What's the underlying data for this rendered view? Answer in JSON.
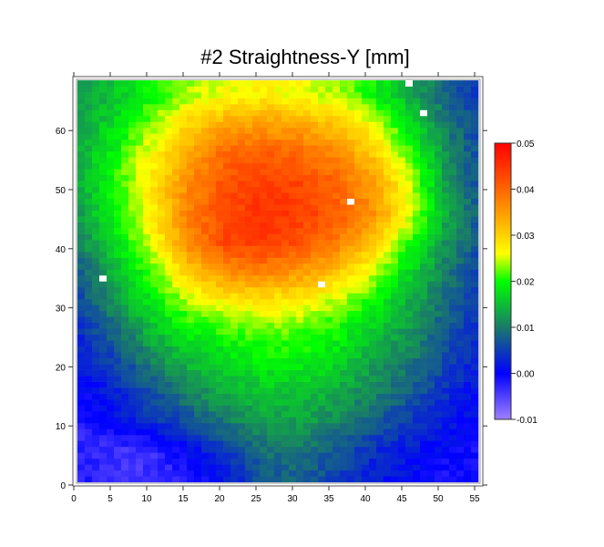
{
  "chart_data": {
    "type": "heatmap",
    "title": "#2 Straightness-Y [mm]",
    "xlabel": "",
    "ylabel": "",
    "xlim": [
      0,
      56
    ],
    "ylim": [
      0,
      69
    ],
    "x_ticks": [
      "0",
      "5",
      "10",
      "15",
      "20",
      "25",
      "30",
      "35",
      "40",
      "45",
      "50",
      "55"
    ],
    "y_ticks": [
      "0",
      "10",
      "20",
      "30",
      "40",
      "50",
      "60"
    ],
    "colorbar": {
      "range": [
        -0.01,
        0.05
      ],
      "ticks": [
        "0.05",
        "0.04",
        "0.03",
        "0.02",
        "0.01",
        "0.00",
        "-0.01"
      ],
      "stops": [
        {
          "v": -0.01,
          "color": "#a080ff"
        },
        {
          "v": 0.0,
          "color": "#0000ff"
        },
        {
          "v": 0.01,
          "color": "#1a7a6a"
        },
        {
          "v": 0.02,
          "color": "#00ff00"
        },
        {
          "v": 0.026,
          "color": "#ffff00"
        },
        {
          "v": 0.033,
          "color": "#ffb000"
        },
        {
          "v": 0.042,
          "color": "#ff5000"
        },
        {
          "v": 0.05,
          "color": "#ff0000"
        }
      ]
    },
    "grid_x": [
      1,
      6,
      11,
      16,
      21,
      26,
      31,
      36,
      41,
      46,
      51,
      56
    ],
    "grid_y": [
      66,
      61,
      56,
      51,
      46,
      41,
      36,
      31,
      26,
      21,
      16,
      11,
      6,
      1
    ],
    "values": [
      [
        0.012,
        0.016,
        0.02,
        0.024,
        0.026,
        0.027,
        0.026,
        0.024,
        0.02,
        0.014,
        0.008,
        0.004
      ],
      [
        0.013,
        0.018,
        0.024,
        0.03,
        0.034,
        0.035,
        0.034,
        0.031,
        0.026,
        0.018,
        0.01,
        0.005
      ],
      [
        0.014,
        0.02,
        0.027,
        0.034,
        0.04,
        0.041,
        0.04,
        0.037,
        0.031,
        0.022,
        0.012,
        0.006
      ],
      [
        0.014,
        0.021,
        0.028,
        0.037,
        0.042,
        0.044,
        0.043,
        0.04,
        0.035,
        0.025,
        0.013,
        0.006
      ],
      [
        0.013,
        0.02,
        0.028,
        0.038,
        0.043,
        0.045,
        0.044,
        0.041,
        0.036,
        0.026,
        0.014,
        0.007
      ],
      [
        0.011,
        0.018,
        0.026,
        0.037,
        0.043,
        0.044,
        0.042,
        0.038,
        0.031,
        0.021,
        0.012,
        0.006
      ],
      [
        0.008,
        0.015,
        0.022,
        0.031,
        0.036,
        0.037,
        0.035,
        0.031,
        0.025,
        0.017,
        0.01,
        0.005
      ],
      [
        0.006,
        0.012,
        0.019,
        0.024,
        0.027,
        0.028,
        0.027,
        0.024,
        0.02,
        0.014,
        0.009,
        0.004
      ],
      [
        0.004,
        0.009,
        0.015,
        0.019,
        0.021,
        0.022,
        0.022,
        0.02,
        0.016,
        0.012,
        0.007,
        0.003
      ],
      [
        0.002,
        0.006,
        0.011,
        0.015,
        0.017,
        0.019,
        0.019,
        0.017,
        0.013,
        0.01,
        0.006,
        0.002
      ],
      [
        0.0,
        0.003,
        0.007,
        0.011,
        0.014,
        0.016,
        0.016,
        0.014,
        0.011,
        0.008,
        0.004,
        0.001
      ],
      [
        -0.002,
        0.001,
        0.004,
        0.007,
        0.01,
        0.013,
        0.013,
        0.011,
        0.008,
        0.005,
        0.002,
        0.0
      ],
      [
        -0.003,
        -0.004,
        -0.003,
        0.001,
        0.005,
        0.009,
        0.01,
        0.007,
        0.004,
        0.002,
        0.0,
        -0.001
      ],
      [
        -0.002,
        -0.004,
        -0.004,
        -0.002,
        0.002,
        0.007,
        0.008,
        0.005,
        0.002,
        0.001,
        -0.001,
        -0.001
      ]
    ],
    "cell_range_x": [
      1,
      55
    ],
    "cell_range_y": [
      1,
      68
    ],
    "missing_points": [
      [
        4,
        35
      ],
      [
        34,
        34
      ],
      [
        38,
        48
      ],
      [
        46,
        68
      ],
      [
        48,
        63
      ]
    ]
  }
}
